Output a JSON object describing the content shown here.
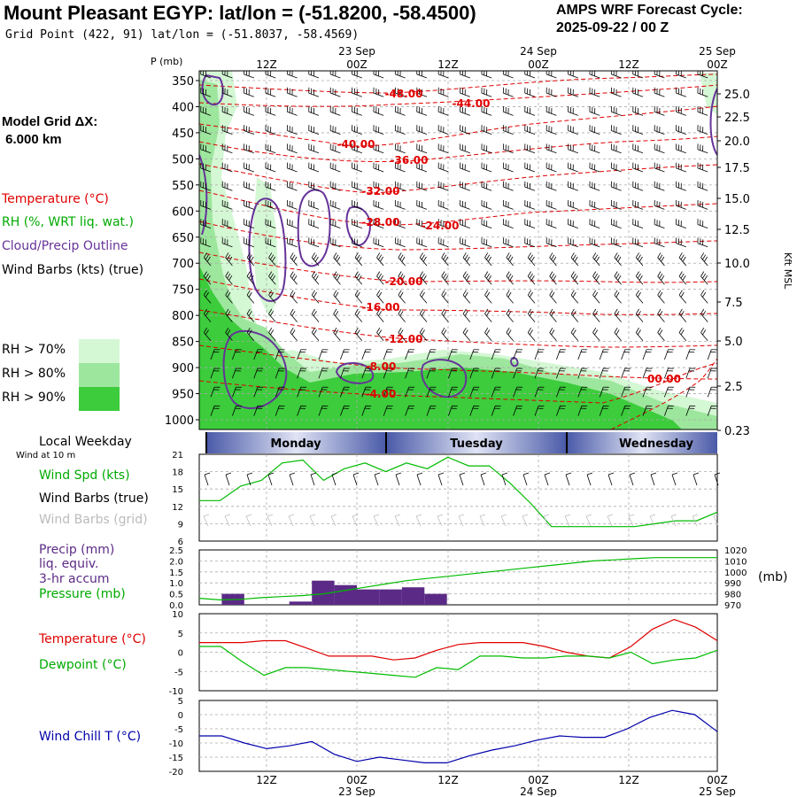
{
  "header": {
    "title": "Mount Pleasant EGYP:  lat/lon = (-51.8200, -58.4500)",
    "subtitle": "Grid Point (422, 91) lat/lon = (-51.8037, -58.4569)",
    "cycle_line1": "AMPS WRF Forecast Cycle:",
    "cycle_line2": "2025-09-22 / 00  Z",
    "grid_line1": "Model Grid ΔX:",
    "grid_line2": " 6.000 km"
  },
  "legend": {
    "temperature": "Temperature (°C)",
    "rh": "RH (%, WRT liq. wat.)",
    "cloud": "Cloud/Precip Outline",
    "wind": "Wind Barbs (kts) (true)",
    "rh70": "RH > 70%",
    "rh80": "RH > 80%",
    "rh90": "RH > 90%"
  },
  "colors": {
    "rh70": "#d4f7d4",
    "rh80": "#9de69d",
    "rh90": "#3ccc3c",
    "temperature": "#e00000",
    "dewpoint": "#00bb00",
    "cloud": "#663399",
    "windchill": "#0000aa",
    "precip": "#5b2a86"
  },
  "axes": {
    "pressure_title": "P (mb)",
    "right_title": "Kft MSL",
    "top_dates": [
      "23  Sep",
      "24  Sep",
      "25  Sep"
    ],
    "time_ticks": [
      "12Z",
      "00Z",
      "12Z",
      "00Z",
      "12Z",
      "00Z"
    ],
    "bottom_dates": [
      "23  Sep",
      "24  Sep",
      "25  Sep"
    ]
  },
  "days": {
    "title": "Local Weekday",
    "wind_note": "Wind at 10 m",
    "labels": [
      "Monday",
      "Tuesday",
      "Wednesday"
    ]
  },
  "panels": {
    "wind_spd": "Wind Spd (kts)",
    "wind_barbs_true": "Wind Barbs (true)",
    "wind_barbs_grid": "Wind Barbs (grid)",
    "precip1": "Precip (mm)",
    "precip2": "liq. equiv.",
    "precip3": "3-hr accum",
    "pressure": "Pressure (mb)",
    "pressure_unit": "(mb)",
    "temperature": "Temperature (°C)",
    "dewpoint": "Dewpoint (°C)",
    "windchill": "Wind Chill T (°C)"
  },
  "chart_data": [
    {
      "type": "heatmap",
      "name": "cross-section",
      "y_axis_pressure_mb": [
        350,
        400,
        450,
        500,
        550,
        600,
        650,
        700,
        750,
        800,
        850,
        900,
        950,
        1000
      ],
      "y_axis_right_kft": [
        "25.0",
        "22.5",
        "20.0",
        "17.5",
        "15.0",
        "12.5",
        "10.0",
        "7.5",
        "5.0",
        "2.5",
        "0.23"
      ],
      "temperature_labels": [
        "-48.00",
        "-44.00",
        "-40.00",
        "-36.00",
        "-32.00",
        "-28.00",
        "-24.00",
        "-20.00",
        "-16.00",
        "-12.00",
        "-8.00",
        "-4.00",
        "00.00"
      ]
    },
    {
      "type": "line",
      "name": "wind-speed",
      "ylim": [
        6,
        21
      ],
      "y_ticks": [
        "21",
        "18",
        "15",
        "12",
        "9",
        "6"
      ],
      "series": [
        {
          "values": [
            13,
            13,
            15.5,
            16.5,
            19.5,
            20,
            16.5,
            18.5,
            19.5,
            18,
            19.5,
            18.5,
            20.5,
            19,
            19,
            16,
            12.5,
            8.5,
            8.5,
            8.5,
            8.5,
            8.5,
            9,
            9.5,
            9.5,
            11
          ]
        }
      ]
    },
    {
      "type": "bar",
      "name": "precip-pressure",
      "precip_ylim": [
        0,
        2.5
      ],
      "precip_ticks": [
        "2.5",
        "2.0",
        "1.5",
        "1.0",
        "0.5",
        "0.0"
      ],
      "pressure_ticks": [
        "1020",
        "1010",
        "1000",
        "990",
        "980",
        "970"
      ],
      "precip_values": [
        0,
        0.5,
        0,
        0,
        0.15,
        1.1,
        0.9,
        0.7,
        0.7,
        0.8,
        0.5,
        0,
        0,
        0,
        0,
        0,
        0,
        0,
        0,
        0,
        0,
        0,
        0,
        0
      ],
      "pressure_values": [
        976,
        974.5,
        975,
        976.5,
        977.5,
        978.5,
        980,
        983,
        986,
        989,
        992,
        994,
        996,
        998,
        1000,
        1002,
        1004,
        1006,
        1008,
        1010,
        1011,
        1012,
        1013,
        1013,
        1013,
        1013
      ]
    },
    {
      "type": "line",
      "name": "temperature-dewpoint",
      "ylim": [
        -10,
        10
      ],
      "y_ticks": [
        "10",
        "5",
        "0",
        "-5",
        "-10"
      ],
      "series": [
        {
          "values": [
            2.5,
            2.5,
            2.5,
            3,
            3,
            1,
            -1,
            -1,
            -1,
            -2,
            -1.5,
            0.5,
            2,
            2.5,
            2.5,
            2.5,
            1.5,
            0,
            -1,
            -1.5,
            1.5,
            6,
            8.5,
            6.5,
            3
          ]
        },
        {
          "values": [
            1.5,
            1.5,
            -2.5,
            -6,
            -4,
            -4,
            -4.5,
            -5,
            -5.5,
            -6,
            -6.5,
            -4,
            -4.5,
            -1,
            -1,
            -1.5,
            -1.5,
            -1,
            -1,
            -1.5,
            0,
            -3,
            -2,
            -1.5,
            0.5
          ]
        }
      ]
    },
    {
      "type": "line",
      "name": "wind-chill",
      "ylim": [
        -20,
        5
      ],
      "y_ticks": [
        "5",
        "0",
        "-5",
        "-10",
        "-15",
        "-20"
      ],
      "series": [
        {
          "values": [
            -7.5,
            -7.5,
            -10,
            -12,
            -11,
            -9.5,
            -14,
            -16.5,
            -15,
            -16,
            -17,
            -17,
            -14.5,
            -12.5,
            -11,
            -9,
            -7.5,
            -8,
            -8,
            -5,
            -1,
            1.5,
            0,
            -6
          ]
        }
      ]
    }
  ]
}
